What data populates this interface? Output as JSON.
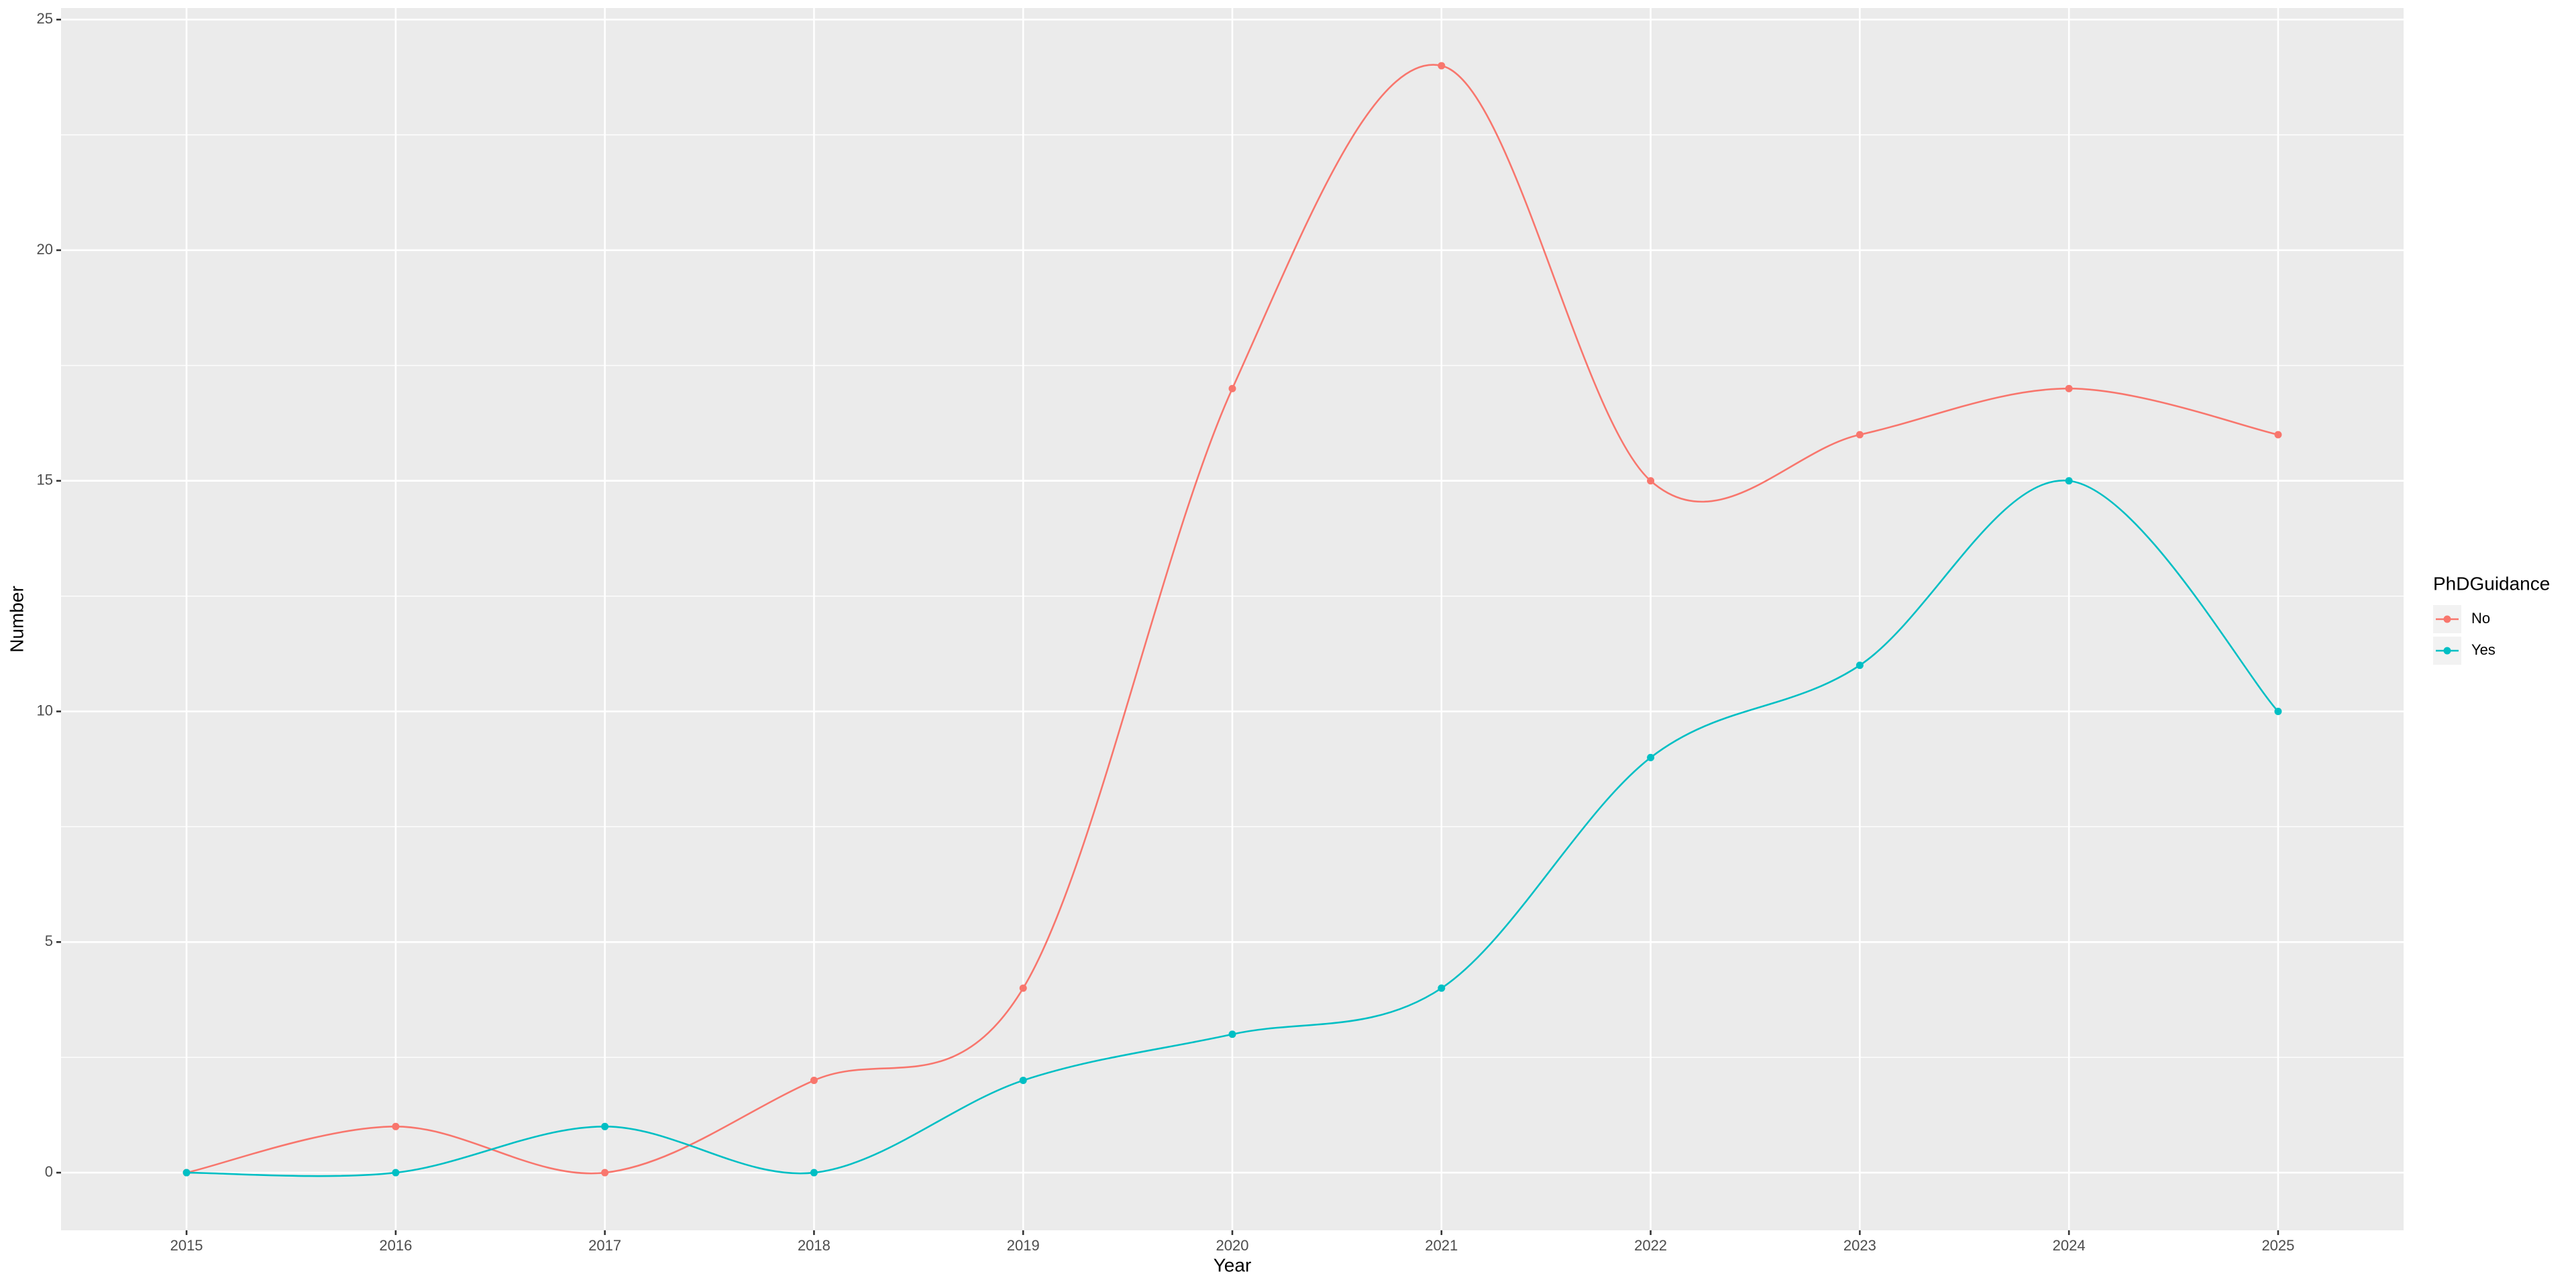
{
  "chart_data": {
    "type": "line",
    "x_label": "Year",
    "y_label": "Number",
    "x": [
      2015,
      2016,
      2017,
      2018,
      2019,
      2020,
      2021,
      2022,
      2023,
      2024,
      2025
    ],
    "series": [
      {
        "name": "No",
        "color": "#F8766D",
        "values": [
          0,
          1,
          0,
          2,
          4,
          17,
          24,
          15,
          16,
          17,
          16
        ]
      },
      {
        "name": "Yes",
        "color": "#00BFC4",
        "values": [
          0,
          0,
          1,
          0,
          2,
          3,
          4,
          9,
          11,
          15,
          10
        ]
      }
    ],
    "xlim": [
      2014.4,
      2025.6
    ],
    "xticks": [
      2015,
      2016,
      2017,
      2018,
      2019,
      2020,
      2021,
      2022,
      2023,
      2024,
      2025
    ],
    "ylim": [
      -1.25,
      25.25
    ],
    "yticks": [
      0,
      5,
      10,
      15,
      20,
      25
    ],
    "y_minor_grid": [
      2.5,
      7.5,
      12.5,
      17.5,
      22.5
    ],
    "grid": true,
    "legend_title": "PhDGuidance",
    "legend_position": "right"
  }
}
